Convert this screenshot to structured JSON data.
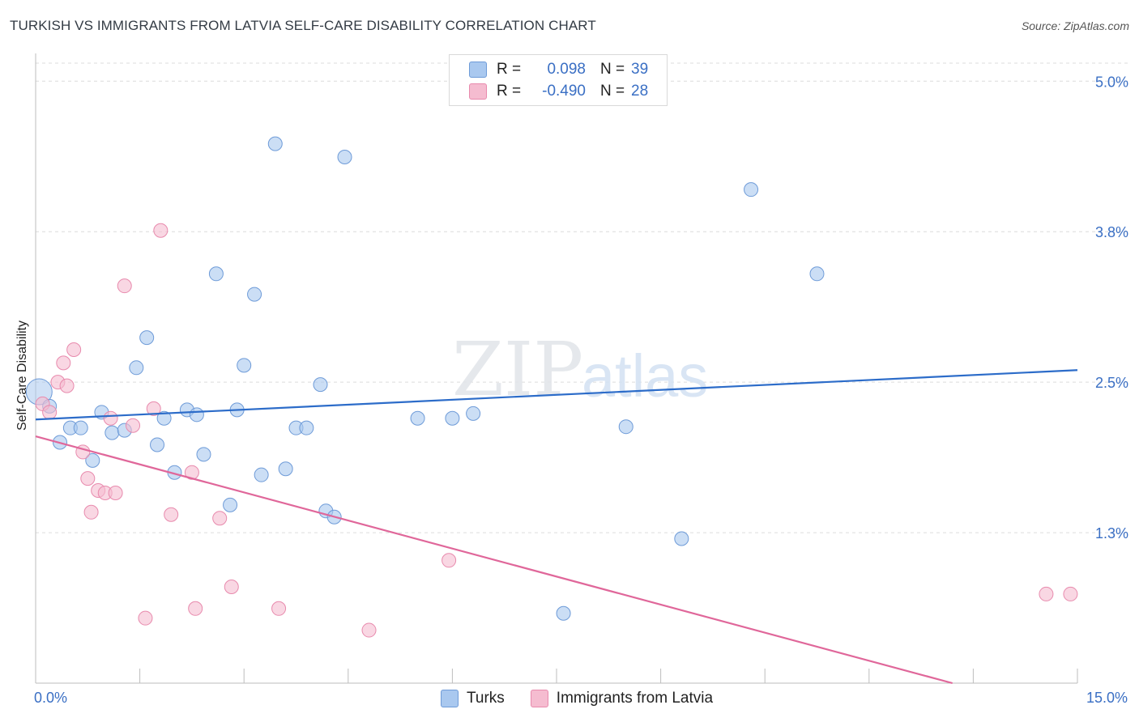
{
  "header": {
    "title": "TURKISH VS IMMIGRANTS FROM LATVIA SELF-CARE DISABILITY CORRELATION CHART",
    "source": "Source: ZipAtlas.com"
  },
  "watermark": {
    "zip": "ZIP",
    "atlas": "atlas"
  },
  "legend": {
    "rows": [
      {
        "r_label": "R =",
        "r_value": "0.098",
        "n_label": "N =",
        "n_value": "39",
        "color": "#a9c8ef"
      },
      {
        "r_label": "R =",
        "r_value": "-0.490",
        "n_label": "N =",
        "n_value": "28",
        "color": "#f5bcd0"
      }
    ]
  },
  "bottom_legend": {
    "series1": "Turks",
    "series2": "Immigrants from Latvia"
  },
  "axis": {
    "ylabel": "Self-Care Disability",
    "x_min_label": "0.0%",
    "x_max_label": "15.0%",
    "y_tick_labels": [
      "5.0%",
      "3.8%",
      "2.5%",
      "1.3%"
    ]
  },
  "chart_data": {
    "type": "scatter",
    "xlabel": "",
    "ylabel": "Self-Care Disability",
    "xlim": [
      0,
      15
    ],
    "ylim": [
      0,
      5.15
    ],
    "y_ticks": [
      1.25,
      2.5,
      3.75,
      5.0
    ],
    "grid": true,
    "legend_placement": "top-center",
    "series": [
      {
        "name": "Turks",
        "color": "#a9c8ef",
        "stroke": "#6e9bd8",
        "trend_color": "#2c6cc9",
        "trend": {
          "x": [
            0,
            15
          ],
          "y": [
            2.19,
            2.6
          ]
        },
        "points": [
          [
            0.05,
            2.42
          ],
          [
            0.2,
            2.3
          ],
          [
            0.35,
            2.0
          ],
          [
            0.5,
            2.12
          ],
          [
            0.65,
            2.12
          ],
          [
            0.82,
            1.85
          ],
          [
            0.95,
            2.25
          ],
          [
            1.1,
            2.08
          ],
          [
            1.28,
            2.1
          ],
          [
            1.45,
            2.62
          ],
          [
            1.6,
            2.87
          ],
          [
            1.75,
            1.98
          ],
          [
            1.85,
            2.2
          ],
          [
            2.0,
            1.75
          ],
          [
            2.18,
            2.27
          ],
          [
            2.32,
            2.23
          ],
          [
            2.42,
            1.9
          ],
          [
            2.6,
            3.4
          ],
          [
            2.8,
            1.48
          ],
          [
            2.9,
            2.27
          ],
          [
            3.0,
            2.64
          ],
          [
            3.15,
            3.23
          ],
          [
            3.25,
            1.73
          ],
          [
            3.45,
            4.48
          ],
          [
            3.6,
            1.78
          ],
          [
            3.75,
            2.12
          ],
          [
            3.9,
            2.12
          ],
          [
            4.1,
            2.48
          ],
          [
            4.18,
            1.43
          ],
          [
            4.3,
            1.38
          ],
          [
            4.45,
            4.37
          ],
          [
            5.5,
            2.2
          ],
          [
            6.0,
            2.2
          ],
          [
            6.3,
            2.24
          ],
          [
            7.6,
            0.58
          ],
          [
            8.5,
            2.13
          ],
          [
            9.3,
            1.2
          ],
          [
            10.3,
            4.1
          ],
          [
            11.25,
            3.4
          ]
        ]
      },
      {
        "name": "Immigrants from Latvia",
        "color": "#f5bcd0",
        "stroke": "#e88aad",
        "trend_color": "#e0679a",
        "trend": {
          "x": [
            0,
            13.2
          ],
          "y": [
            2.05,
            0.0
          ]
        },
        "points": [
          [
            0.1,
            2.32
          ],
          [
            0.2,
            2.25
          ],
          [
            0.32,
            2.5
          ],
          [
            0.4,
            2.66
          ],
          [
            0.45,
            2.47
          ],
          [
            0.55,
            2.77
          ],
          [
            0.68,
            1.92
          ],
          [
            0.75,
            1.7
          ],
          [
            0.8,
            1.42
          ],
          [
            0.9,
            1.6
          ],
          [
            1.0,
            1.58
          ],
          [
            1.08,
            2.2
          ],
          [
            1.15,
            1.58
          ],
          [
            1.28,
            3.3
          ],
          [
            1.4,
            2.14
          ],
          [
            1.58,
            0.54
          ],
          [
            1.7,
            2.28
          ],
          [
            1.8,
            3.76
          ],
          [
            1.95,
            1.4
          ],
          [
            2.25,
            1.75
          ],
          [
            2.3,
            0.62
          ],
          [
            2.65,
            1.37
          ],
          [
            2.82,
            0.8
          ],
          [
            3.5,
            0.62
          ],
          [
            4.8,
            0.44
          ],
          [
            5.95,
            1.02
          ],
          [
            14.55,
            0.74
          ],
          [
            14.9,
            0.74
          ]
        ]
      }
    ]
  }
}
